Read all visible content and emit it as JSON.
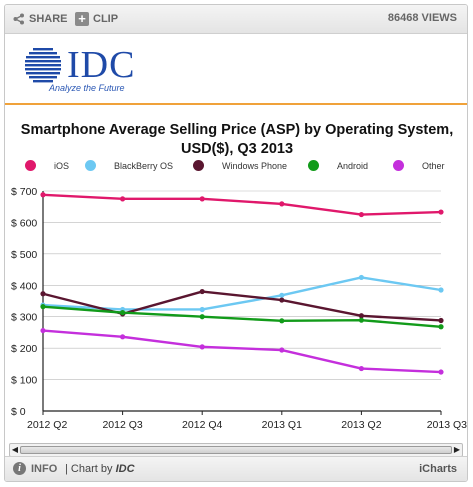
{
  "toolbar": {
    "share_label": "SHARE",
    "clip_label": "CLIP",
    "views_label": "86468 VIEWS"
  },
  "brand": {
    "logo_text": "IDC",
    "tagline": "Analyze the Future",
    "color": "#1f4aa8",
    "rule_color": "#f0a23a"
  },
  "footer": {
    "info_label": "INFO",
    "chart_by_prefix": "| Chart by",
    "chart_by_brand": "IDC",
    "icharts_label": "iCharts"
  },
  "chart_data": {
    "type": "line",
    "title": "Smartphone Average Selling Price (ASP) by Operating System, USD($), Q3 2013",
    "categories": [
      "2012 Q2",
      "2012 Q3",
      "2012 Q4",
      "2013 Q1",
      "2013 Q2",
      "2013 Q3"
    ],
    "ylim": [
      0,
      700
    ],
    "yticks": [
      0,
      100,
      200,
      300,
      400,
      500,
      600,
      700
    ],
    "ytick_prefix": "$ ",
    "grid": "horizontal",
    "legend_position": "top",
    "series": [
      {
        "name": "iOS",
        "color": "#e0186b",
        "values": [
          688,
          675,
          675,
          659,
          625,
          633
        ]
      },
      {
        "name": "BlackBerry OS",
        "color": "#6cc8f2",
        "values": [
          337,
          323,
          323,
          368,
          425,
          385
        ]
      },
      {
        "name": "Windows Phone",
        "color": "#5a1630",
        "values": [
          373,
          309,
          380,
          353,
          303,
          288
        ]
      },
      {
        "name": "Android",
        "color": "#129b1a",
        "values": [
          332,
          313,
          300,
          287,
          289,
          268
        ]
      },
      {
        "name": "Other",
        "color": "#c42fdc",
        "values": [
          256,
          236,
          204,
          194,
          135,
          124
        ]
      }
    ]
  }
}
